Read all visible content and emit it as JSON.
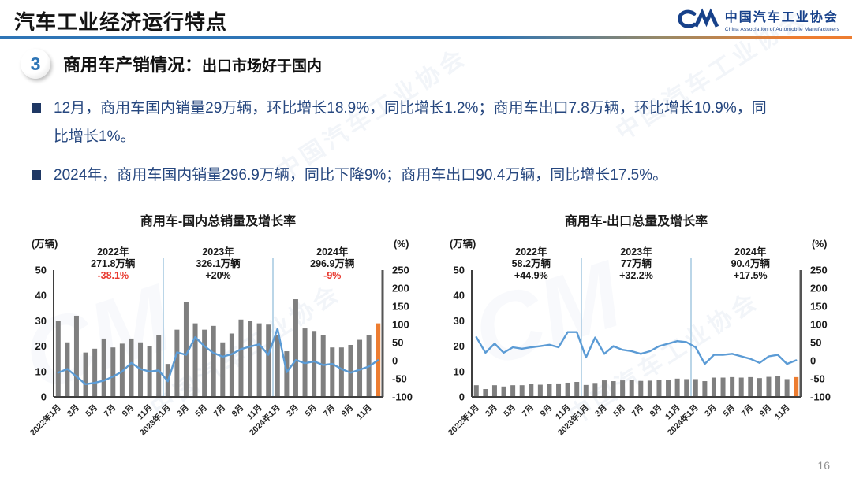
{
  "slide": {
    "title": "汽车工业经济运行特点",
    "page_number": "16",
    "watermark_text": "中国汽车工业协会",
    "watermark_mark": "CM",
    "logo": {
      "mark": "CM",
      "cn": "中国汽车工业协会",
      "en": "China Association of Automobile Manufacturers"
    },
    "section": {
      "number": "3",
      "heading": "商用车产销情况：",
      "subheading": "出口市场好于国内"
    },
    "bullets": [
      "12月，商用车国内销量29万辆，环比增长18.9%，同比增长1.2%；商用车出口7.8万辆，环比增长10.9%，同比增长1%。",
      "2024年，商用车国内销量296.9万辆，同比下降9%；商用车出口90.4万辆，同比增长17.5%。"
    ]
  },
  "colors": {
    "title_text": "#1a1a1a",
    "body_text": "#26477f",
    "bullet_marker": "#1f3864",
    "header_line_blue": "#2e75b6",
    "accent_orange": "#ed7d31",
    "bar_gray": "#7f7f7f",
    "line_blue": "#5b9bd5",
    "divider_blue": "#aacbe3",
    "negative_red": "#e8392f",
    "badge_number": "#2e75b6",
    "logo_blue": "#17418a",
    "page_number": "#909090",
    "axis_dark": "#3f3f3f"
  },
  "chart_data": [
    {
      "type": "combo_bar_line",
      "title": "商用车-国内总销量及增长率",
      "left_axis_label": "(万辆)",
      "right_axis_label": "(%)",
      "left_axis_range": [
        0,
        50
      ],
      "right_axis_range": [
        -100,
        250
      ],
      "left_axis_ticks": [
        50,
        40,
        30,
        20,
        10,
        0
      ],
      "right_axis_ticks": [
        250,
        200,
        150,
        100,
        50,
        0,
        -50,
        -100
      ],
      "x_tick_labels": [
        "2022年1月",
        "3月",
        "5月",
        "7月",
        "9月",
        "11月",
        "2023年1月",
        "3月",
        "5月",
        "7月",
        "9月",
        "11月",
        "2024年1月",
        "3月",
        "5月",
        "7月",
        "9月",
        "11月"
      ],
      "annotations": [
        {
          "year": "2022年",
          "total": "271.8万辆",
          "pct": "-38.1%",
          "negative": true
        },
        {
          "year": "2023年",
          "total": "326.1万辆",
          "pct": "+20%",
          "negative": false
        },
        {
          "year": "2024年",
          "total": "296.9万辆",
          "pct": "-9%",
          "negative": true
        }
      ],
      "bar_values": [
        30,
        21.5,
        32,
        17.5,
        19,
        23,
        19.5,
        21,
        23,
        21.5,
        20,
        24.5,
        13,
        26.5,
        37.5,
        29,
        26.5,
        28,
        21.5,
        25,
        30.5,
        30,
        29,
        28.5,
        24.5,
        18,
        38.5,
        27,
        26,
        24.5,
        19.5,
        19.5,
        20.5,
        22.5,
        24.4,
        29
      ],
      "line_values_pct": [
        -33,
        -23,
        -44,
        -65,
        -61,
        -55,
        -44,
        -30,
        -6,
        -23,
        -30,
        -27,
        -57,
        23,
        16,
        65,
        40,
        21,
        11,
        18,
        32,
        39,
        45,
        16,
        88,
        -32,
        2,
        -7,
        -2,
        -12,
        -9,
        -23,
        -33,
        -25,
        -16,
        1.2
      ],
      "year_dividers": [
        12,
        24
      ],
      "highlight_last_bar": true,
      "grid": false,
      "legend": "none"
    },
    {
      "type": "combo_bar_line",
      "title": "商用车-出口总量及增长率",
      "left_axis_label": "(万辆)",
      "right_axis_label": "(%)",
      "left_axis_range": [
        0,
        50
      ],
      "right_axis_range": [
        -100,
        250
      ],
      "left_axis_ticks": [
        50,
        40,
        30,
        20,
        10,
        0
      ],
      "right_axis_ticks": [
        250,
        200,
        150,
        100,
        50,
        0,
        -50,
        -100
      ],
      "x_tick_labels": [
        "2022年1月",
        "3月",
        "5月",
        "7月",
        "9月",
        "11月",
        "2023年1月",
        "3月",
        "5月",
        "7月",
        "9月",
        "11月",
        "2024年1月",
        "3月",
        "5月",
        "7月",
        "9月",
        "11月"
      ],
      "annotations": [
        {
          "year": "2022年",
          "total": "58.2万辆",
          "pct": "+44.9%",
          "negative": false
        },
        {
          "year": "2023年",
          "total": "77万辆",
          "pct": "+32.2%",
          "negative": false
        },
        {
          "year": "2024年",
          "total": "90.4万辆",
          "pct": "+17.5%",
          "negative": false
        }
      ],
      "bar_values": [
        4.6,
        3.1,
        4.6,
        4.1,
        4.6,
        4.6,
        5,
        4.8,
        5,
        5.3,
        5.6,
        5.9,
        4.7,
        5.5,
        6.5,
        6.2,
        6.5,
        6.6,
        6.3,
        6.4,
        6.6,
        6.8,
        7.2,
        7,
        7,
        6.2,
        7.6,
        7.6,
        7.8,
        7.6,
        7.8,
        7.4,
        7.9,
        8.1,
        7,
        7.8
      ],
      "line_values_pct": [
        65,
        22,
        47,
        22,
        37,
        33,
        37,
        40,
        44,
        37,
        79,
        79,
        9,
        64,
        19,
        40,
        30,
        26,
        19,
        26,
        40,
        47,
        54,
        51,
        37,
        -9,
        16,
        16,
        19,
        12,
        5,
        -6,
        12,
        16,
        -9,
        1
      ],
      "year_dividers": [
        12,
        24
      ],
      "highlight_last_bar": true,
      "grid": false,
      "legend": "none"
    }
  ]
}
